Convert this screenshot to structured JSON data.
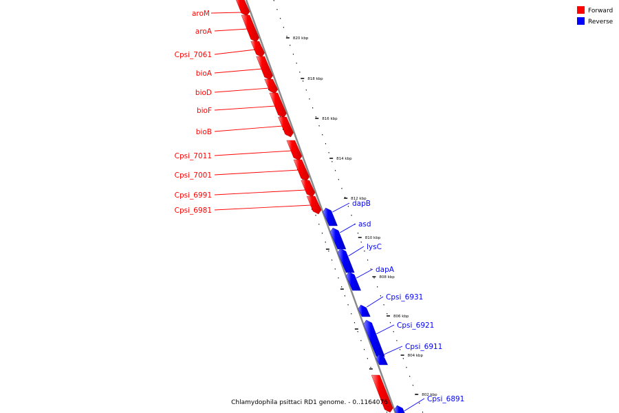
{
  "colors": {
    "forward": "#ff0000",
    "reverse": "#0000ff",
    "backbone": "#8a8a8a",
    "dots": "#000000"
  },
  "legend": {
    "forward_label": "Forward",
    "reverse_label": "Reverse"
  },
  "caption": "Chlamydophila psittaci RD1 genome. - 0..1164076",
  "ticks": [
    "820 kbp",
    "818 kbp",
    "816 kbp",
    "814 kbp",
    "812 kbp",
    "810 kbp",
    "808 kbp",
    "806 kbp",
    "804 kbp",
    "802 kbp"
  ],
  "forward_genes": [
    "aroM",
    "aroA",
    "Cpsi_7061",
    "bioA",
    "bioD",
    "bioF",
    "bioB",
    "Cpsi_7011",
    "Cpsi_7001",
    "Cpsi_6991",
    "Cpsi_6981"
  ],
  "reverse_genes": [
    "dapB",
    "asd",
    "lysC",
    "dapA",
    "Cpsi_6931",
    "Cpsi_6921",
    "Cpsi_6911",
    "Cpsi_6891"
  ]
}
